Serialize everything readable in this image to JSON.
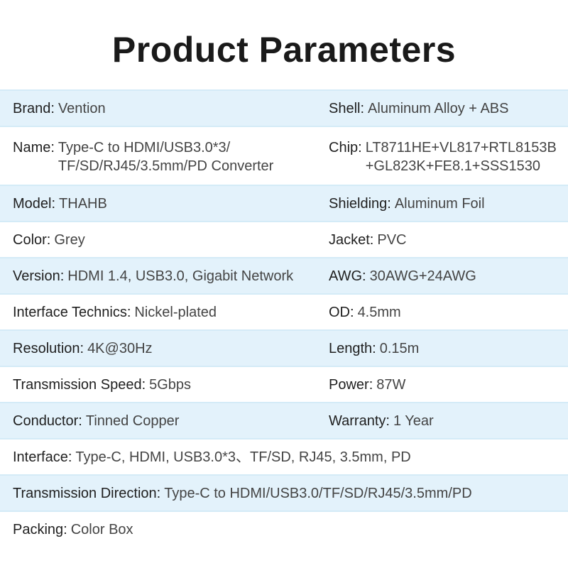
{
  "title": "Product Parameters",
  "colors": {
    "row_alt": "#e3f2fb",
    "divider": "#d4ebf7"
  },
  "rows": [
    {
      "left": {
        "label": "Brand:",
        "value": "Vention"
      },
      "right": {
        "label": "Shell:",
        "value": "Aluminum Alloy + ABS"
      }
    },
    {
      "left": {
        "label": "Name:",
        "value": "Type-C to HDMI/USB3.0*3/\nTF/SD/RJ45/3.5mm/PD Converter"
      },
      "right": {
        "label": "Chip:",
        "value": "LT8711HE+VL817+RTL8153B\n+GL823K+FE8.1+SSS1530"
      }
    },
    {
      "left": {
        "label": "Model:",
        "value": "THAHB"
      },
      "right": {
        "label": "Shielding:",
        "value": "Aluminum Foil"
      }
    },
    {
      "left": {
        "label": "Color:",
        "value": "Grey"
      },
      "right": {
        "label": "Jacket:",
        "value": "PVC"
      }
    },
    {
      "left": {
        "label": "Version:",
        "value": "HDMI 1.4, USB3.0, Gigabit Network"
      },
      "right": {
        "label": "AWG:",
        "value": "30AWG+24AWG"
      }
    },
    {
      "left": {
        "label": "Interface Technics:",
        "value": "Nickel-plated"
      },
      "right": {
        "label": "OD:",
        "value": "4.5mm"
      }
    },
    {
      "left": {
        "label": "Resolution:",
        "value": "4K@30Hz"
      },
      "right": {
        "label": "Length:",
        "value": "0.15m"
      }
    },
    {
      "left": {
        "label": "Transmission Speed:",
        "value": "5Gbps"
      },
      "right": {
        "label": "Power:",
        "value": "87W"
      }
    },
    {
      "left": {
        "label": "Conductor:",
        "value": "Tinned Copper"
      },
      "right": {
        "label": "Warranty:",
        "value": "1 Year"
      }
    },
    {
      "full": {
        "label": "Interface:",
        "value": "Type-C, HDMI, USB3.0*3、TF/SD, RJ45, 3.5mm, PD"
      }
    },
    {
      "full": {
        "label": "Transmission Direction:",
        "value": "Type-C to HDMI/USB3.0/TF/SD/RJ45/3.5mm/PD"
      }
    },
    {
      "full": {
        "label": "Packing:",
        "value": "Color Box"
      }
    }
  ]
}
